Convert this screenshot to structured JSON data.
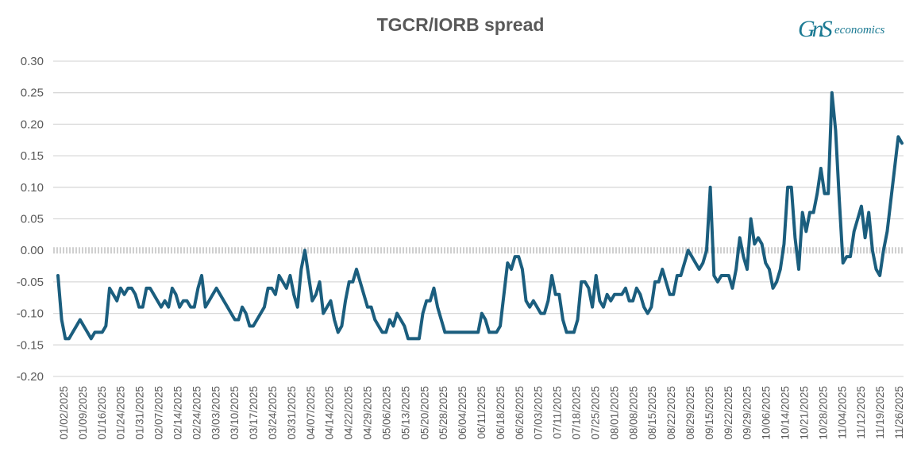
{
  "chart_data": {
    "type": "line",
    "title": "TGCR/IORB spread",
    "xlabel": "",
    "ylabel": "",
    "ylim": [
      -0.2,
      0.3
    ],
    "yticks": [
      "0.30",
      "0.25",
      "0.20",
      "0.15",
      "0.10",
      "0.05",
      "0.00",
      "-0.05",
      "-0.10",
      "-0.15",
      "-0.20"
    ],
    "grid": true,
    "legend": "none",
    "x_tick_labels": [
      "01/02/2025",
      "01/09/2025",
      "01/16/2025",
      "01/24/2025",
      "01/31/2025",
      "02/07/2025",
      "02/14/2025",
      "02/24/2025",
      "03/03/2025",
      "03/10/2025",
      "03/17/2025",
      "03/24/2025",
      "03/31/2025",
      "04/07/2025",
      "04/14/2025",
      "04/22/2025",
      "04/29/2025",
      "05/06/2025",
      "05/13/2025",
      "05/20/2025",
      "05/28/2025",
      "06/04/2025",
      "06/11/2025",
      "06/18/2025",
      "06/26/2025",
      "07/03/2025",
      "07/11/2025",
      "07/18/2025",
      "07/25/2025",
      "08/01/2025",
      "08/08/2025",
      "08/15/2025",
      "08/22/2025",
      "08/29/2025",
      "09/15/2025",
      "09/22/2025",
      "09/29/2025",
      "10/06/2025",
      "10/14/2025",
      "10/21/2025",
      "10/28/2025",
      "11/04/2025",
      "11/12/2025",
      "11/19/2025",
      "11/26/2025"
    ],
    "series": [
      {
        "color": "#1b5e7e",
        "values": [
          -0.04,
          -0.11,
          -0.14,
          -0.14,
          -0.13,
          -0.12,
          -0.11,
          -0.12,
          -0.13,
          -0.14,
          -0.13,
          -0.13,
          -0.13,
          -0.12,
          -0.06,
          -0.07,
          -0.08,
          -0.06,
          -0.07,
          -0.06,
          -0.06,
          -0.07,
          -0.09,
          -0.09,
          -0.06,
          -0.06,
          -0.07,
          -0.08,
          -0.09,
          -0.08,
          -0.09,
          -0.06,
          -0.07,
          -0.09,
          -0.08,
          -0.08,
          -0.09,
          -0.09,
          -0.06,
          -0.04,
          -0.09,
          -0.08,
          -0.07,
          -0.06,
          -0.07,
          -0.08,
          -0.09,
          -0.1,
          -0.11,
          -0.11,
          -0.09,
          -0.1,
          -0.12,
          -0.12,
          -0.11,
          -0.1,
          -0.09,
          -0.06,
          -0.06,
          -0.07,
          -0.04,
          -0.05,
          -0.06,
          -0.04,
          -0.07,
          -0.09,
          -0.03,
          0.0,
          -0.04,
          -0.08,
          -0.07,
          -0.05,
          -0.1,
          -0.09,
          -0.08,
          -0.11,
          -0.13,
          -0.12,
          -0.08,
          -0.05,
          -0.05,
          -0.03,
          -0.05,
          -0.07,
          -0.09,
          -0.09,
          -0.11,
          -0.12,
          -0.13,
          -0.13,
          -0.11,
          -0.12,
          -0.1,
          -0.11,
          -0.12,
          -0.14,
          -0.14,
          -0.14,
          -0.14,
          -0.1,
          -0.08,
          -0.08,
          -0.06,
          -0.09,
          -0.11,
          -0.13,
          -0.13,
          -0.13,
          -0.13,
          -0.13,
          -0.13,
          -0.13,
          -0.13,
          -0.13,
          -0.13,
          -0.1,
          -0.11,
          -0.13,
          -0.13,
          -0.13,
          -0.12,
          -0.07,
          -0.02,
          -0.03,
          -0.01,
          -0.01,
          -0.03,
          -0.08,
          -0.09,
          -0.08,
          -0.09,
          -0.1,
          -0.1,
          -0.08,
          -0.04,
          -0.07,
          -0.07,
          -0.11,
          -0.13,
          -0.13,
          -0.13,
          -0.11,
          -0.05,
          -0.05,
          -0.06,
          -0.09,
          -0.04,
          -0.08,
          -0.09,
          -0.07,
          -0.08,
          -0.07,
          -0.07,
          -0.07,
          -0.06,
          -0.08,
          -0.08,
          -0.06,
          -0.07,
          -0.09,
          -0.1,
          -0.09,
          -0.05,
          -0.05,
          -0.03,
          -0.05,
          -0.07,
          -0.07,
          -0.04,
          -0.04,
          -0.02,
          0.0,
          -0.01,
          -0.02,
          -0.03,
          -0.02,
          0.0,
          0.1,
          -0.04,
          -0.05,
          -0.04,
          -0.04,
          -0.04,
          -0.06,
          -0.03,
          0.02,
          -0.01,
          -0.03,
          0.05,
          0.01,
          0.02,
          0.01,
          -0.02,
          -0.03,
          -0.06,
          -0.05,
          -0.03,
          0.01,
          0.1,
          0.1,
          0.02,
          -0.03,
          0.06,
          0.03,
          0.06,
          0.06,
          0.09,
          0.13,
          0.09,
          0.09,
          0.25,
          0.19,
          0.08,
          -0.02,
          -0.01,
          -0.01,
          0.03,
          0.05,
          0.07,
          0.02,
          0.06,
          0.0,
          -0.03,
          -0.04,
          0.0,
          0.03,
          0.08,
          0.13,
          0.18,
          0.17
        ]
      }
    ]
  },
  "logo": {
    "mark": "GnS",
    "text": "economics"
  }
}
